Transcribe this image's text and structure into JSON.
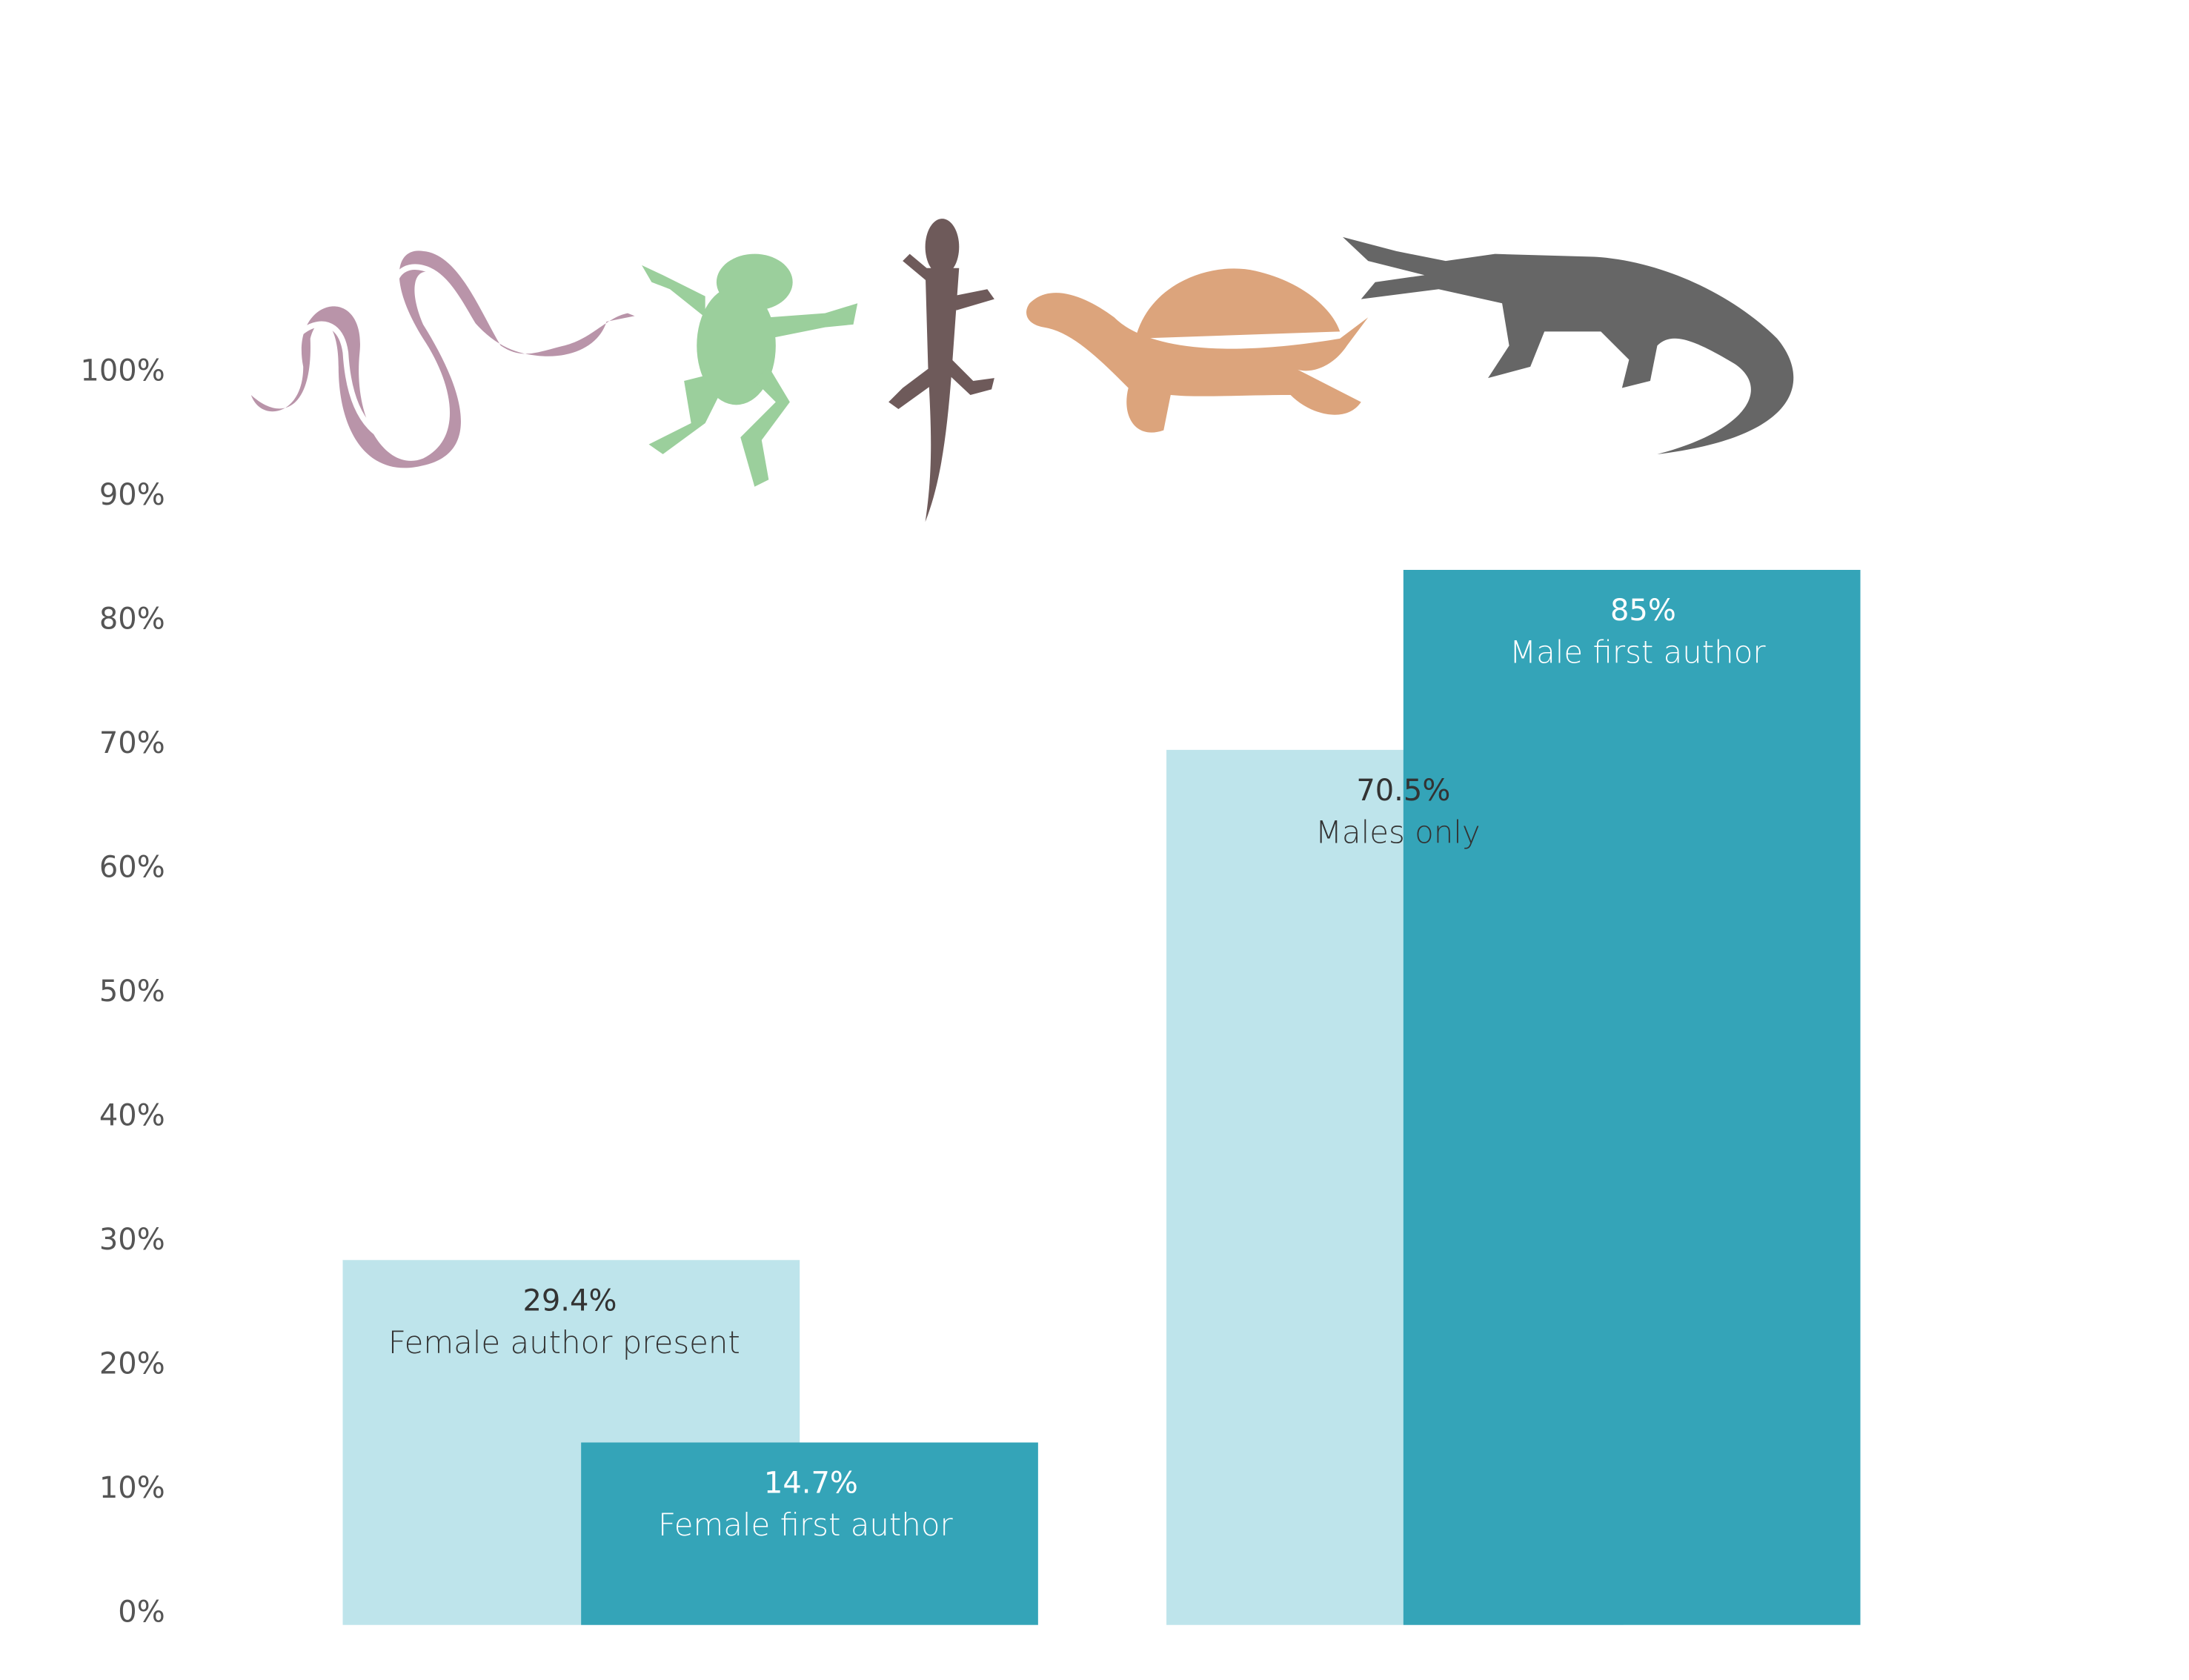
{
  "chart_data": {
    "type": "bar",
    "categories": [
      "Female author present",
      "Female first author",
      "Males only",
      "Male first author"
    ],
    "values": [
      29.4,
      14.7,
      70.5,
      85
    ],
    "value_labels": [
      "29.4%",
      "14.7%",
      "70.5%",
      "85%"
    ],
    "colors": [
      "#bee4eb",
      "#34a4b8",
      "#bee4eb",
      "#34a4b8"
    ],
    "ylim": [
      0,
      100
    ],
    "yticks": [
      {
        "value": 0,
        "label": "0%"
      },
      {
        "value": 10,
        "label": "10%"
      },
      {
        "value": 20,
        "label": "20%"
      },
      {
        "value": 30,
        "label": "30%"
      },
      {
        "value": 40,
        "label": "40%"
      },
      {
        "value": 50,
        "label": "50%"
      },
      {
        "value": 60,
        "label": "60%"
      },
      {
        "value": 70,
        "label": "70%"
      },
      {
        "value": 80,
        "label": "80%"
      },
      {
        "value": 90,
        "label": "90%"
      },
      {
        "value": 100,
        "label": "100%"
      }
    ],
    "grid": false
  }
}
